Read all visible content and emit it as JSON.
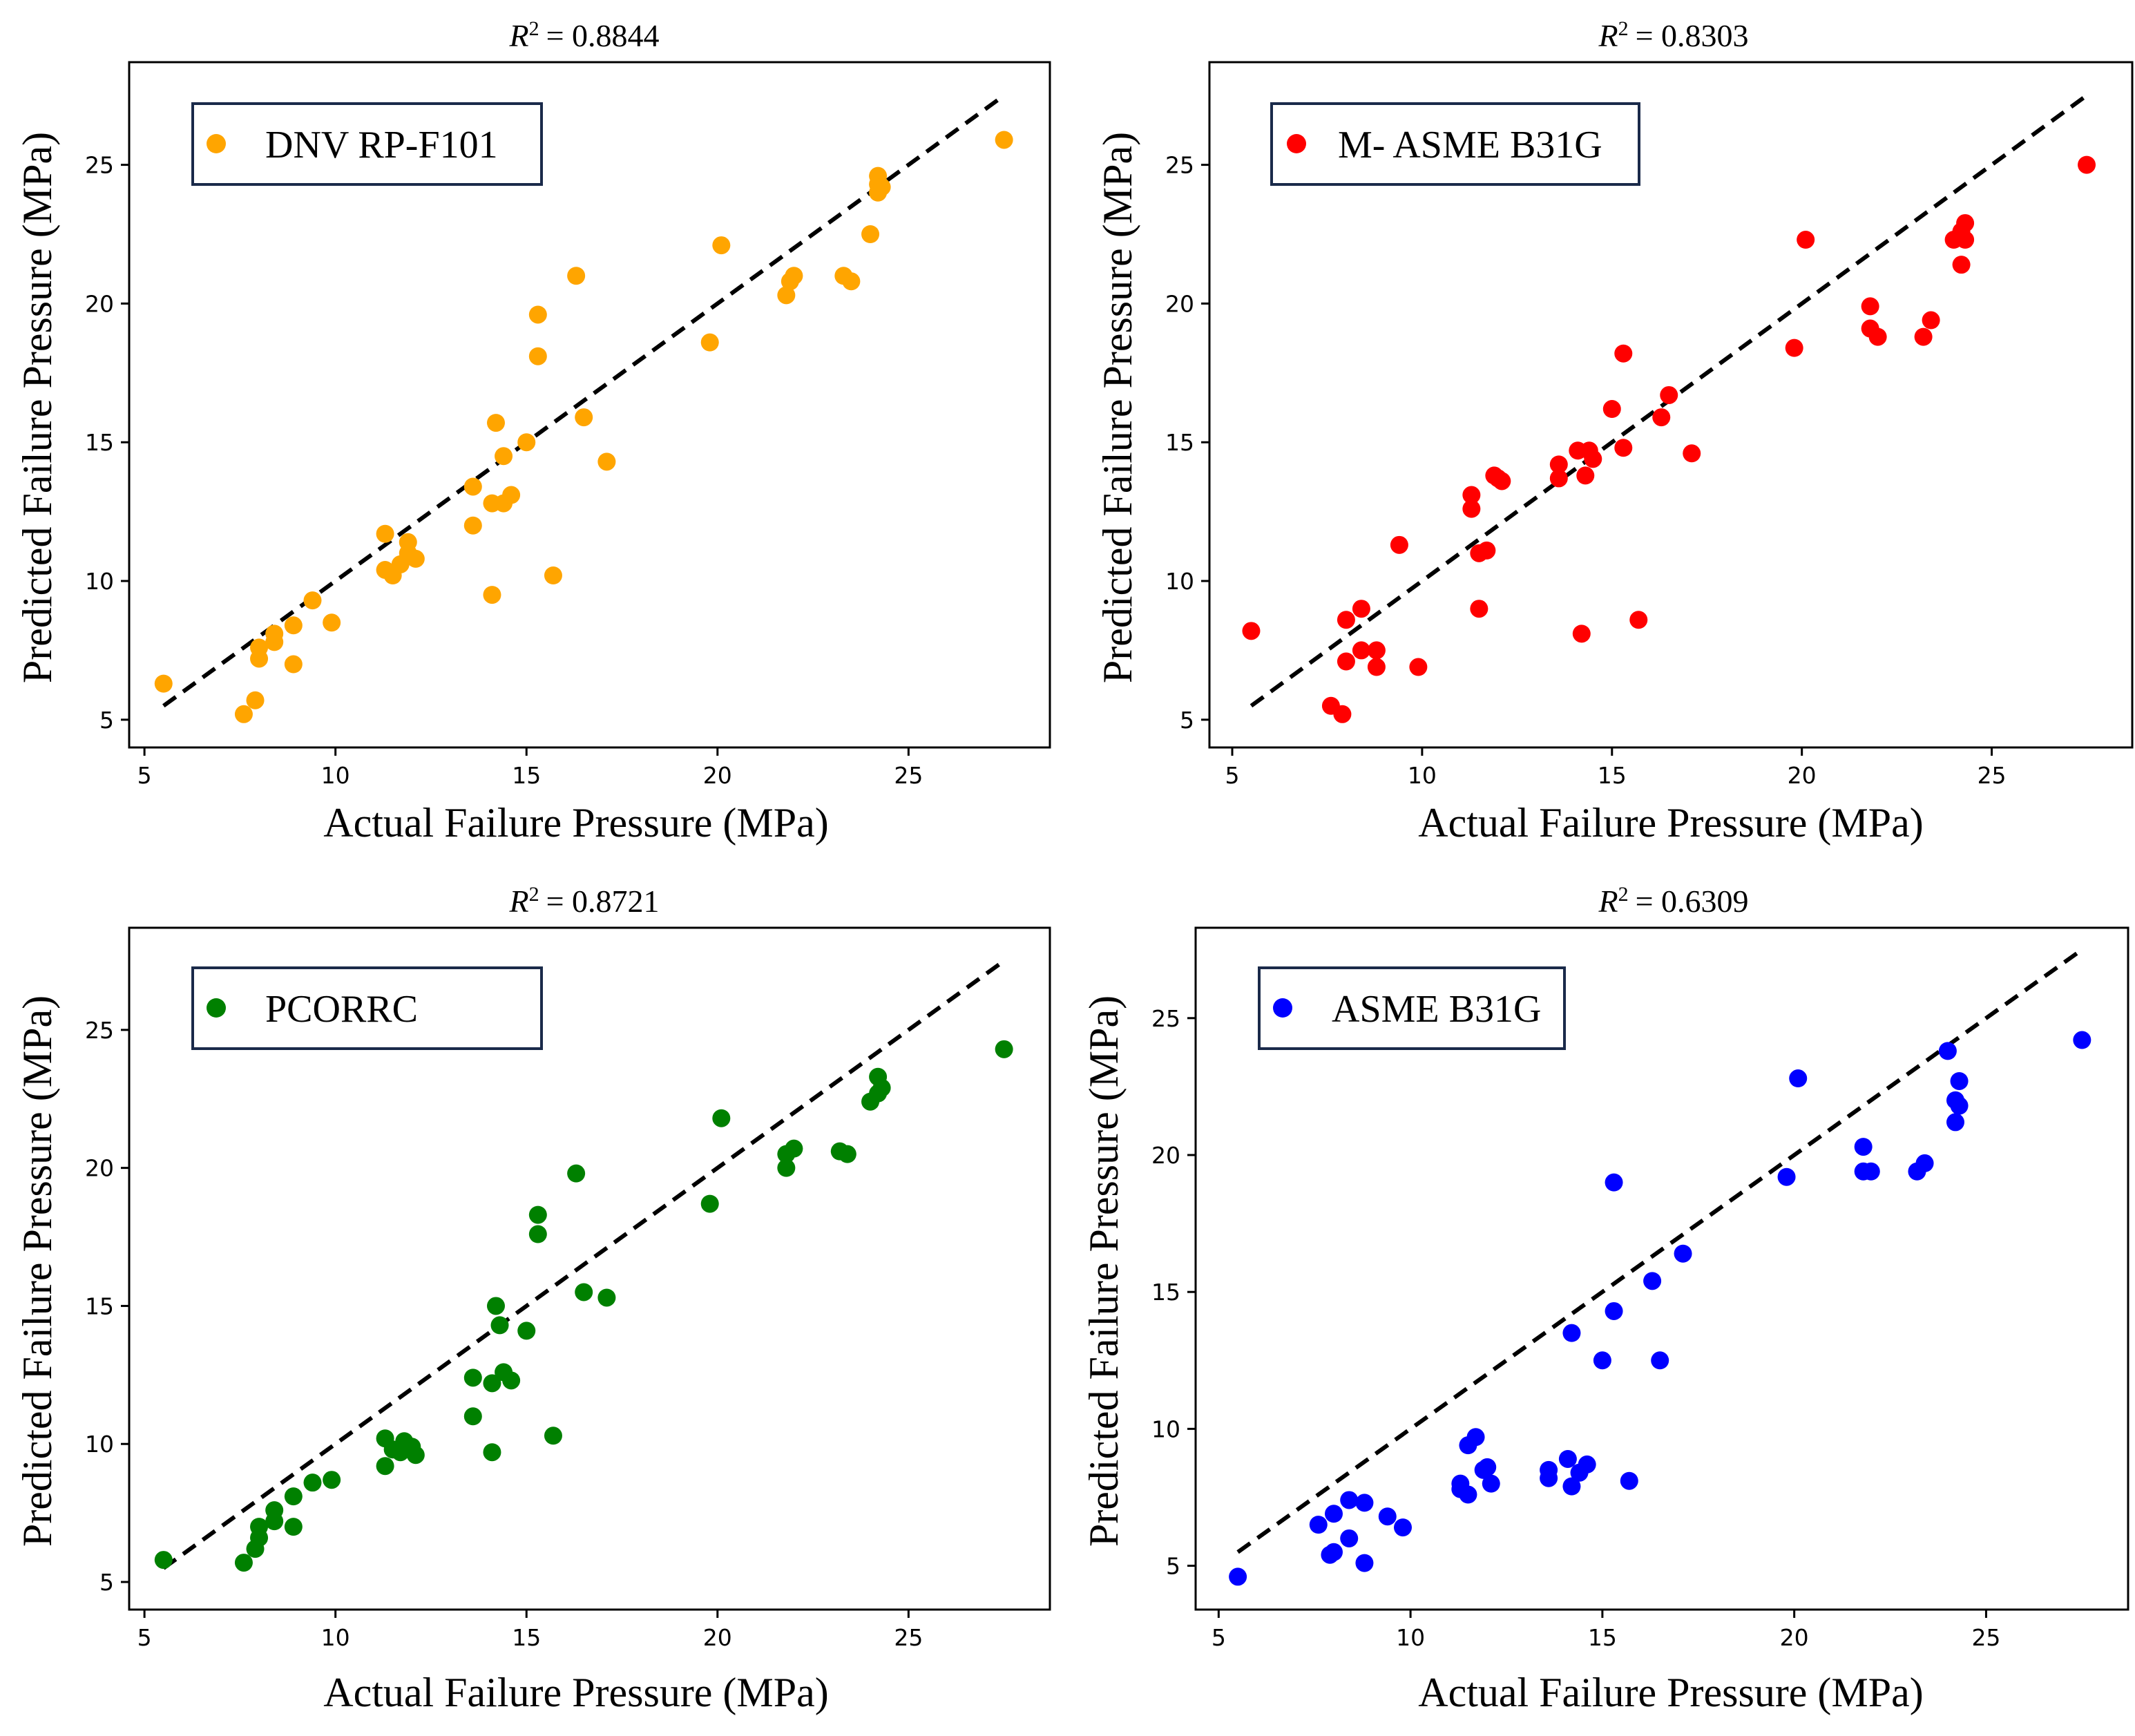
{
  "figure": {
    "description_none": ""
  },
  "chart_data": [
    {
      "type": "scatter",
      "title": "R² = 0.8844",
      "r_squared_label": "R",
      "r_squared_value": "= 0.8844",
      "xlabel": "Actual Failure Pressure (MPa)",
      "ylabel": "Predicted Failure Pressure (MPa)",
      "legend": "DNV RP-F101",
      "legend_position": "top-left",
      "color": "#FFA500",
      "xlim": [
        4.6,
        28.7
      ],
      "ylim": [
        4.0,
        28.7
      ],
      "xticks": [
        5,
        10,
        15,
        20,
        25
      ],
      "yticks": [
        5,
        10,
        15,
        20,
        25
      ],
      "reference_line": {
        "from": [
          5.5,
          5.5
        ],
        "to": [
          27.5,
          27.5
        ],
        "style": "dashed",
        "color": "#000000"
      },
      "points": [
        [
          5.5,
          6.3
        ],
        [
          7.6,
          5.2
        ],
        [
          7.9,
          5.7
        ],
        [
          8.0,
          7.2
        ],
        [
          8.0,
          7.6
        ],
        [
          8.4,
          7.8
        ],
        [
          8.4,
          8.1
        ],
        [
          8.9,
          7.0
        ],
        [
          8.9,
          8.4
        ],
        [
          9.4,
          9.3
        ],
        [
          9.9,
          8.5
        ],
        [
          11.3,
          10.4
        ],
        [
          11.3,
          11.7
        ],
        [
          11.5,
          10.2
        ],
        [
          11.7,
          10.6
        ],
        [
          11.9,
          11.0
        ],
        [
          11.9,
          11.4
        ],
        [
          12.1,
          10.8
        ],
        [
          13.6,
          12.0
        ],
        [
          13.6,
          13.4
        ],
        [
          14.1,
          9.5
        ],
        [
          14.1,
          12.8
        ],
        [
          14.2,
          15.7
        ],
        [
          14.4,
          14.5
        ],
        [
          14.4,
          12.8
        ],
        [
          14.6,
          13.1
        ],
        [
          15.0,
          15.0
        ],
        [
          15.3,
          19.6
        ],
        [
          15.3,
          18.1
        ],
        [
          15.7,
          10.2
        ],
        [
          16.3,
          21.0
        ],
        [
          16.5,
          15.9
        ],
        [
          17.1,
          14.3
        ],
        [
          19.8,
          18.6
        ],
        [
          20.1,
          22.1
        ],
        [
          21.8,
          20.3
        ],
        [
          21.9,
          20.8
        ],
        [
          22.0,
          21.0
        ],
        [
          23.3,
          21.0
        ],
        [
          23.5,
          20.8
        ],
        [
          24.0,
          22.5
        ],
        [
          24.2,
          24.0
        ],
        [
          24.2,
          24.3
        ],
        [
          24.2,
          24.6
        ],
        [
          24.3,
          24.2
        ],
        [
          27.5,
          25.9
        ]
      ]
    },
    {
      "type": "scatter",
      "title": "R² = 0.8303",
      "r_squared_label": "R",
      "r_squared_value": "= 0.8303",
      "xlabel": "Actual Failure Pressure (MPa)",
      "ylabel": "Predicted Failure Pressure (MPa)",
      "legend": "M- ASME B31G",
      "legend_position": "top-left",
      "color": "#FF0000",
      "xlim": [
        4.4,
        28.7
      ],
      "ylim": [
        4.0,
        28.7
      ],
      "xticks": [
        5,
        10,
        15,
        20,
        25
      ],
      "yticks": [
        5,
        10,
        15,
        20,
        25
      ],
      "reference_line": {
        "from": [
          5.5,
          5.5
        ],
        "to": [
          27.5,
          27.5
        ],
        "style": "dashed",
        "color": "#000000"
      },
      "points": [
        [
          5.5,
          8.2
        ],
        [
          7.6,
          5.5
        ],
        [
          7.9,
          5.2
        ],
        [
          8.0,
          7.1
        ],
        [
          8.0,
          8.6
        ],
        [
          8.4,
          7.5
        ],
        [
          8.4,
          9.0
        ],
        [
          8.8,
          7.5
        ],
        [
          8.8,
          6.9
        ],
        [
          9.4,
          11.3
        ],
        [
          9.9,
          6.9
        ],
        [
          11.3,
          12.6
        ],
        [
          11.3,
          13.1
        ],
        [
          11.5,
          9.0
        ],
        [
          11.5,
          11.0
        ],
        [
          11.7,
          11.1
        ],
        [
          11.9,
          13.8
        ],
        [
          12.0,
          13.7
        ],
        [
          12.1,
          13.6
        ],
        [
          13.6,
          13.7
        ],
        [
          13.6,
          14.2
        ],
        [
          14.1,
          14.7
        ],
        [
          14.2,
          8.1
        ],
        [
          14.3,
          13.8
        ],
        [
          14.4,
          14.7
        ],
        [
          14.5,
          14.4
        ],
        [
          15.0,
          16.2
        ],
        [
          15.3,
          14.8
        ],
        [
          15.3,
          18.2
        ],
        [
          15.7,
          8.6
        ],
        [
          16.3,
          15.9
        ],
        [
          16.5,
          16.7
        ],
        [
          17.1,
          14.6
        ],
        [
          19.8,
          18.4
        ],
        [
          20.1,
          22.3
        ],
        [
          21.8,
          19.1
        ],
        [
          21.8,
          19.9
        ],
        [
          22.0,
          18.8
        ],
        [
          23.2,
          18.8
        ],
        [
          23.4,
          19.4
        ],
        [
          24.0,
          22.3
        ],
        [
          24.2,
          21.4
        ],
        [
          24.2,
          22.6
        ],
        [
          24.3,
          22.9
        ],
        [
          24.3,
          22.3
        ],
        [
          27.5,
          25.0
        ]
      ]
    },
    {
      "type": "scatter",
      "title": "R² = 0.8721",
      "r_squared_label": "R",
      "r_squared_value": "= 0.8721",
      "xlabel": "Actual Failure Pressure (MPa)",
      "ylabel": "Predicted Failure Pressure (MPa)",
      "legend": "PCORRC",
      "legend_position": "top-left",
      "color": "#008000",
      "xlim": [
        4.6,
        28.7
      ],
      "ylim": [
        4.0,
        28.7
      ],
      "xticks": [
        5,
        10,
        15,
        20,
        25
      ],
      "yticks": [
        5,
        10,
        15,
        20,
        25
      ],
      "reference_line": {
        "from": [
          5.5,
          5.5
        ],
        "to": [
          27.5,
          27.5
        ],
        "style": "dashed",
        "color": "#000000"
      },
      "points": [
        [
          5.5,
          5.8
        ],
        [
          7.6,
          5.7
        ],
        [
          7.9,
          6.2
        ],
        [
          8.0,
          6.6
        ],
        [
          8.0,
          7.0
        ],
        [
          8.4,
          7.2
        ],
        [
          8.4,
          7.6
        ],
        [
          8.9,
          7.0
        ],
        [
          8.9,
          8.1
        ],
        [
          9.4,
          8.6
        ],
        [
          9.9,
          8.7
        ],
        [
          11.3,
          9.2
        ],
        [
          11.3,
          10.2
        ],
        [
          11.5,
          9.8
        ],
        [
          11.7,
          9.7
        ],
        [
          11.8,
          10.1
        ],
        [
          12.0,
          9.9
        ],
        [
          12.1,
          9.6
        ],
        [
          13.6,
          11.0
        ],
        [
          13.6,
          12.4
        ],
        [
          14.1,
          12.2
        ],
        [
          14.1,
          9.7
        ],
        [
          14.2,
          15.0
        ],
        [
          14.3,
          14.3
        ],
        [
          14.4,
          12.6
        ],
        [
          14.6,
          12.3
        ],
        [
          15.0,
          14.1
        ],
        [
          15.3,
          18.3
        ],
        [
          15.3,
          17.6
        ],
        [
          15.7,
          10.3
        ],
        [
          16.3,
          19.8
        ],
        [
          16.5,
          15.5
        ],
        [
          17.1,
          15.3
        ],
        [
          19.8,
          18.7
        ],
        [
          20.1,
          21.8
        ],
        [
          21.8,
          20.0
        ],
        [
          21.8,
          20.5
        ],
        [
          22.0,
          20.7
        ],
        [
          23.2,
          20.6
        ],
        [
          23.4,
          20.5
        ],
        [
          24.0,
          22.4
        ],
        [
          24.2,
          23.3
        ],
        [
          24.2,
          22.7
        ],
        [
          24.3,
          22.9
        ],
        [
          27.5,
          24.3
        ]
      ]
    },
    {
      "type": "scatter",
      "title": "R² = 0.6309",
      "r_squared_label": "R",
      "r_squared_value": "= 0.6309",
      "xlabel": "Actual Failure Pressure (MPa)",
      "ylabel": "Predicted Failure Pressure (MPa)",
      "legend": "ASME B31G",
      "legend_position": "top-left",
      "color": "#0000FF",
      "xlim": [
        4.4,
        28.7
      ],
      "ylim": [
        3.4,
        28.3
      ],
      "xticks": [
        5,
        10,
        15,
        20,
        25
      ],
      "yticks": [
        5,
        10,
        15,
        20,
        25
      ],
      "reference_line": {
        "from": [
          5.5,
          5.5
        ],
        "to": [
          27.5,
          27.5
        ],
        "style": "dashed",
        "color": "#000000"
      },
      "points": [
        [
          5.5,
          4.6
        ],
        [
          7.6,
          6.5
        ],
        [
          7.9,
          5.4
        ],
        [
          8.0,
          5.5
        ],
        [
          8.0,
          6.9
        ],
        [
          8.4,
          6.0
        ],
        [
          8.4,
          7.4
        ],
        [
          8.8,
          5.1
        ],
        [
          8.8,
          7.3
        ],
        [
          9.4,
          6.8
        ],
        [
          9.8,
          6.4
        ],
        [
          11.3,
          7.8
        ],
        [
          11.3,
          8.0
        ],
        [
          11.5,
          9.4
        ],
        [
          11.5,
          7.6
        ],
        [
          11.7,
          9.7
        ],
        [
          11.9,
          8.5
        ],
        [
          12.0,
          8.6
        ],
        [
          12.1,
          8.0
        ],
        [
          13.6,
          8.2
        ],
        [
          13.6,
          8.5
        ],
        [
          14.1,
          8.9
        ],
        [
          14.2,
          13.5
        ],
        [
          14.2,
          7.9
        ],
        [
          14.4,
          8.4
        ],
        [
          14.6,
          8.7
        ],
        [
          15.0,
          12.5
        ],
        [
          15.3,
          14.3
        ],
        [
          15.3,
          19.0
        ],
        [
          15.7,
          8.1
        ],
        [
          16.3,
          15.4
        ],
        [
          16.5,
          12.5
        ],
        [
          17.1,
          16.4
        ],
        [
          19.8,
          19.2
        ],
        [
          20.1,
          22.8
        ],
        [
          21.8,
          19.4
        ],
        [
          21.8,
          20.3
        ],
        [
          22.0,
          19.4
        ],
        [
          23.2,
          19.4
        ],
        [
          23.4,
          19.7
        ],
        [
          24.0,
          23.8
        ],
        [
          24.2,
          22.0
        ],
        [
          24.2,
          21.2
        ],
        [
          24.3,
          22.7
        ],
        [
          24.3,
          21.8
        ],
        [
          27.5,
          24.2
        ]
      ]
    }
  ]
}
